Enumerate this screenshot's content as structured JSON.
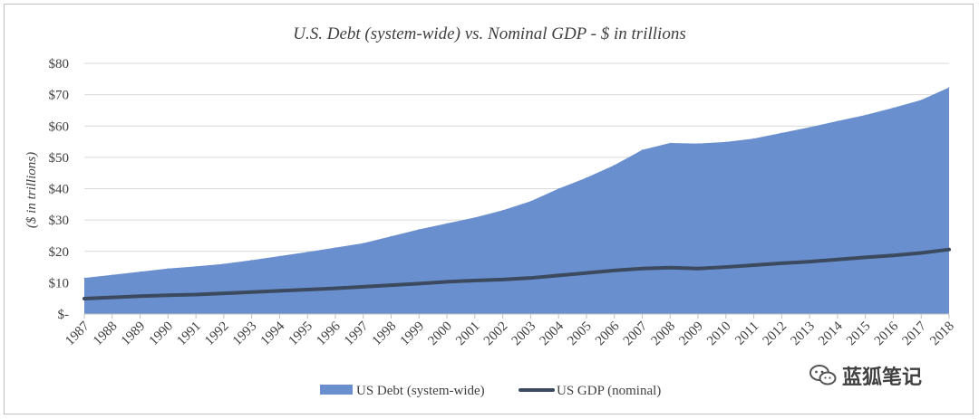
{
  "chart_data": {
    "type": "area",
    "title": "U.S. Debt (system-wide) vs. Nominal GDP - $ in trillions",
    "ylabel": "($ in trillions)",
    "xlabel": "",
    "ylim": [
      0,
      80
    ],
    "yticks": [
      0,
      10,
      20,
      30,
      40,
      50,
      60,
      70,
      80
    ],
    "ytick_labels": [
      "$-",
      "$10",
      "$20",
      "$30",
      "$40",
      "$50",
      "$60",
      "$70",
      "$80"
    ],
    "grid": true,
    "legend_position": "bottom",
    "x": [
      "1987",
      "1988",
      "1989",
      "1990",
      "1991",
      "1992",
      "1993",
      "1994",
      "1995",
      "1996",
      "1997",
      "1998",
      "1999",
      "2000",
      "2001",
      "2002",
      "2003",
      "2004",
      "2005",
      "2006",
      "2007",
      "2008",
      "2009",
      "2010",
      "2011",
      "2012",
      "2013",
      "2014",
      "2015",
      "2016",
      "2017",
      "2018"
    ],
    "series": [
      {
        "name": "US Debt (system-wide)",
        "type": "area",
        "color": "#6a8fcf",
        "values": [
          11.5,
          12.5,
          13.5,
          14.5,
          15.2,
          16.0,
          17.2,
          18.5,
          19.8,
          21.2,
          22.6,
          24.8,
          27.0,
          28.9,
          30.8,
          33.1,
          36.0,
          40.0,
          43.5,
          47.5,
          52.4,
          54.6,
          54.4,
          54.9,
          56.0,
          57.8,
          59.6,
          61.6,
          63.5,
          65.8,
          68.3,
          72.3
        ]
      },
      {
        "name": "US GDP (nominal)",
        "type": "line",
        "color": "#3b4a5e",
        "values": [
          4.9,
          5.3,
          5.7,
          6.0,
          6.2,
          6.6,
          7.0,
          7.4,
          7.8,
          8.2,
          8.7,
          9.2,
          9.7,
          10.3,
          10.7,
          11.0,
          11.5,
          12.3,
          13.1,
          13.9,
          14.5,
          14.8,
          14.5,
          15.0,
          15.6,
          16.2,
          16.7,
          17.4,
          18.1,
          18.7,
          19.5,
          20.6
        ]
      }
    ]
  },
  "watermark": {
    "text": "蓝狐笔记",
    "icon": "wechat-icon"
  }
}
